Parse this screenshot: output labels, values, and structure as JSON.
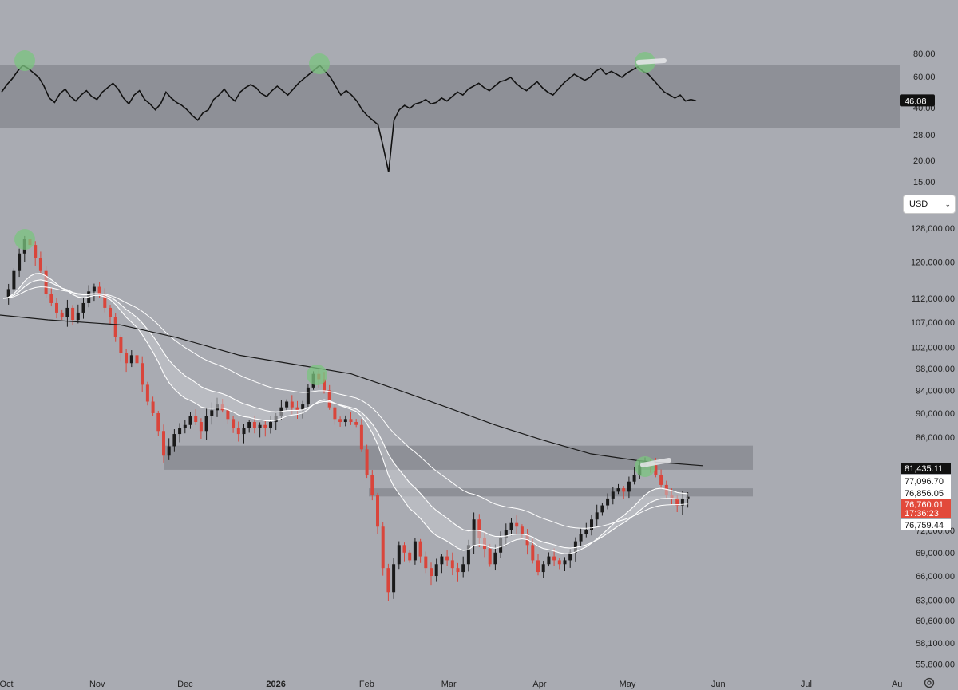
{
  "currency_selector": {
    "value": "USD",
    "chevron": "chevron-down-icon"
  },
  "settings": {
    "icon": "gear-icon"
  },
  "colors": {
    "background": "#a9abb2",
    "band": "#8e9097",
    "up_candle": "#1a1a1a",
    "down_candle": "#d9453b",
    "ema": "#ffffff",
    "sma200": "#1a1a1a",
    "highlight": "#7bc47f",
    "last_price_tag": "#e24a3b"
  },
  "chart_data": [
    {
      "type": "line",
      "name": "RSI panel",
      "y_ticks": [
        "80.00",
        "60.00",
        "40.00",
        "28.00",
        "20.00",
        "15.00"
      ],
      "y_tick_values": [
        80,
        60,
        40,
        28,
        20,
        15
      ],
      "band": [
        28,
        70
      ],
      "current_value_label": "46.08",
      "current_value": 46.08,
      "peaks_highlighted": [
        "early Oct",
        "mid Jan",
        "early May"
      ],
      "series": [
        {
          "values": [
            52,
            57,
            61,
            66,
            70,
            68,
            65,
            62,
            56,
            48,
            45,
            51,
            54,
            49,
            46,
            50,
            53,
            49,
            47,
            52,
            55,
            58,
            54,
            48,
            44,
            50,
            53,
            47,
            44,
            40,
            44,
            52,
            48,
            45,
            43,
            40,
            36,
            33,
            38,
            40,
            47,
            50,
            54,
            49,
            46,
            52,
            55,
            57,
            55,
            51,
            49,
            53,
            56,
            53,
            50,
            54,
            58,
            61,
            64,
            67,
            70,
            66,
            62,
            56,
            50,
            53,
            50,
            46,
            40,
            36,
            33,
            30,
            24,
            19,
            33,
            40,
            43,
            41,
            44,
            45,
            47,
            44,
            45,
            48,
            46,
            49,
            52,
            50,
            54,
            56,
            58,
            55,
            53,
            56,
            59,
            60,
            62,
            58,
            55,
            53,
            56,
            59,
            55,
            52,
            50,
            54,
            58,
            61,
            64,
            62,
            60,
            62,
            66,
            68,
            64,
            66,
            64,
            62,
            65,
            67,
            69,
            66,
            64,
            60,
            56,
            52,
            50,
            48,
            50,
            46,
            47,
            46.08
          ]
        }
      ]
    },
    {
      "type": "candlestick",
      "name": "Price panel",
      "x_tick_labels": [
        "Oct",
        "Nov",
        "Dec",
        "2026",
        "Feb",
        "Mar",
        "Apr",
        "May",
        "Jun",
        "Jul",
        "Au"
      ],
      "x_tick_values": [
        "2025-10-01",
        "2025-11-01",
        "2025-12-01",
        "2026-01-01",
        "2026-02-01",
        "2026-03-01",
        "2026-04-01",
        "2026-05-01",
        "2026-06-01",
        "2026-07-01",
        "2026-08-01"
      ],
      "y_tick_labels": [
        "128,000.00",
        "120,000.00",
        "112,000.00",
        "107,000.00",
        "102,000.00",
        "98,000.00",
        "94,000.00",
        "90,000.00",
        "86,000.00",
        "72,000.00",
        "69,000.00",
        "66,000.00",
        "63,000.00",
        "60,600.00",
        "58,100.00",
        "55,800.00"
      ],
      "y_tick_values": [
        128000,
        120000,
        112000,
        107000,
        102000,
        98000,
        94000,
        90000,
        86000,
        72000,
        69000,
        66000,
        63000,
        60600,
        58100,
        55800
      ],
      "y_scale": "log",
      "y_range": [
        55000,
        130000
      ],
      "price_tags": [
        {
          "label": "81,435.11",
          "value": 81435.11,
          "style": "black"
        },
        {
          "label": "77,096.70",
          "value": 77096.7,
          "style": "white"
        },
        {
          "label": "76,856.05",
          "value": 76856.05,
          "style": "white"
        },
        {
          "label": "76,760.01",
          "value": 76760.01,
          "style": "red"
        },
        {
          "label": "17:36:23",
          "style": "red"
        },
        {
          "label": "76,759.44",
          "value": 76759.44,
          "style": "white"
        }
      ],
      "zones": [
        {
          "from": 80800,
          "to": 84600
        },
        {
          "from": 76800,
          "to": 78000
        }
      ],
      "closes": [
        112000,
        114000,
        118000,
        122000,
        125500,
        124000,
        121000,
        118000,
        113000,
        111000,
        109000,
        108000,
        110000,
        107500,
        109000,
        111000,
        113500,
        114500,
        113000,
        110000,
        108000,
        104000,
        101000,
        99000,
        100500,
        99000,
        95000,
        92000,
        90000,
        87000,
        83000,
        84500,
        86500,
        87500,
        88000,
        89500,
        88500,
        87000,
        89500,
        90500,
        91500,
        90500,
        89000,
        87500,
        86500,
        87500,
        88500,
        87500,
        88000,
        87500,
        88500,
        89500,
        91000,
        92000,
        91000,
        90500,
        91500,
        94500,
        97000,
        96000,
        94000,
        91000,
        89000,
        88500,
        89000,
        88500,
        88000,
        84000,
        80000,
        77000,
        72500,
        67000,
        64000,
        67500,
        70000,
        69000,
        68000,
        70500,
        68500,
        67000,
        66000,
        67500,
        68500,
        68000,
        67000,
        66500,
        67500,
        70000,
        73500,
        71000,
        69500,
        67500,
        69000,
        71000,
        72000,
        73000,
        72500,
        71500,
        70000,
        68000,
        66500,
        67500,
        68500,
        68000,
        67500,
        68000,
        69000,
        70500,
        71500,
        72000,
        73500,
        74500,
        75500,
        76500,
        77500,
        78000,
        77500,
        79000,
        80000,
        81500,
        82000,
        81500,
        80000,
        78500,
        77000,
        76500,
        75500,
        76500,
        76760
      ]
    }
  ]
}
